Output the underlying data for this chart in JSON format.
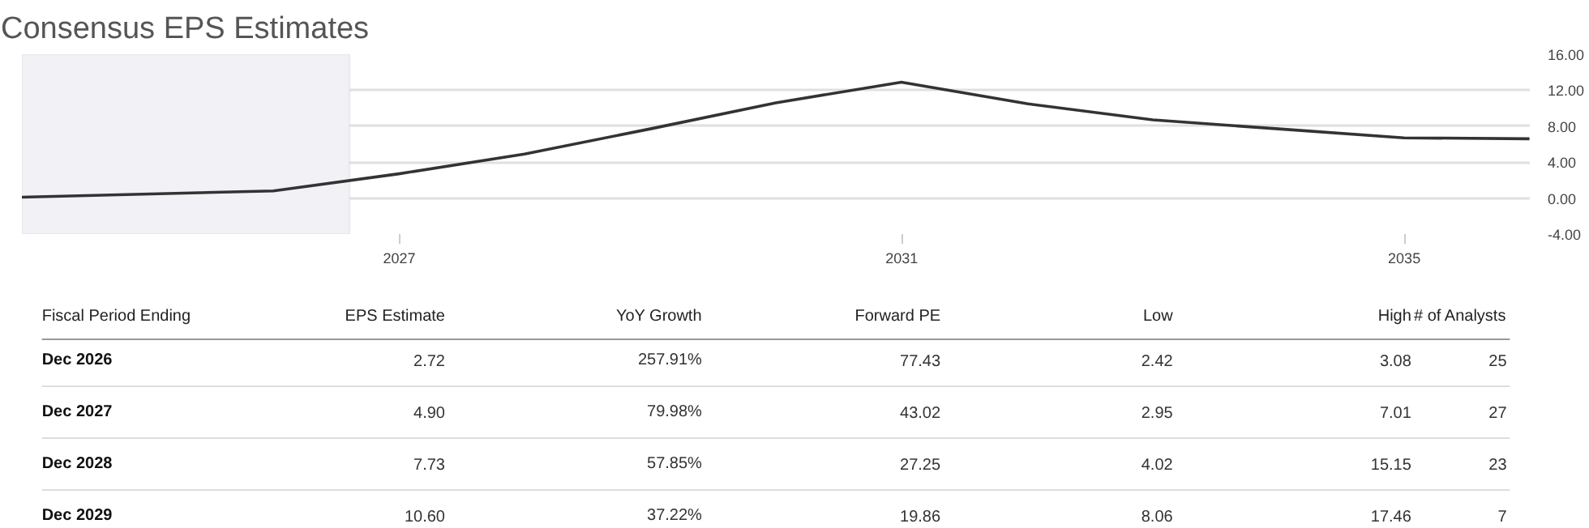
{
  "chart_data": [
    {
      "type": "line",
      "title": "Consensus EPS Estimates",
      "x": [
        "2023-12-31",
        "2025-12-31",
        "2026-12-31",
        "2027-12-31",
        "2028-12-31",
        "2029-12-31",
        "2030-12-31",
        "2031-12-31",
        "2032-12-31",
        "2033-12-31",
        "2034-12-31",
        "2035-12-31"
      ],
      "series": [
        {
          "color": "#333333",
          "values": [
            0.1,
            0.8,
            2.7,
            4.9,
            7.7,
            10.6,
            12.9,
            10.5,
            8.7,
            7.7,
            6.7,
            6.6
          ]
        }
      ],
      "xlim": [
        "2023-12-31",
        "2036-01-01"
      ],
      "xticks": [
        {
          "value": "2027-01-01",
          "label": "2027"
        },
        {
          "value": "2031-01-01",
          "label": "2031"
        },
        {
          "value": "2035-01-01",
          "label": "2035"
        }
      ],
      "ylim": [
        -4,
        16
      ],
      "yticks": [
        {
          "value": -4,
          "label": "-4.00"
        },
        {
          "value": 0,
          "label": "0.00"
        },
        {
          "value": 4,
          "label": "4.00"
        },
        {
          "value": 8,
          "label": "8.00"
        },
        {
          "value": 12,
          "label": "12.00"
        },
        {
          "value": 16,
          "label": "16.00"
        }
      ],
      "bands": [
        {
          "axis": "x",
          "from": "2023-12-31",
          "to": "2026-08-10",
          "color": "#f2f2f6"
        }
      ],
      "grid": "y",
      "marker": "none",
      "line_style": "solid"
    },
    {
      "type": "other",
      "ylabel": "Fiscal Period Ending",
      "categories": [
        "EPS Estimate",
        "YoY Growth",
        "Forward PE",
        "Low",
        "High",
        "# of Analysts"
      ],
      "y_categories": [
        "Dec 2026",
        "Dec 2027",
        "Dec 2028",
        "Dec 2029"
      ],
      "cell_labels": [
        [
          "2.72",
          "257.91%",
          "77.43",
          "2.42",
          "3.08",
          "25"
        ],
        [
          "4.90",
          "79.98%",
          "43.02",
          "2.95",
          "7.01",
          "27"
        ],
        [
          "7.73",
          "57.85%",
          "27.25",
          "4.02",
          "15.15",
          "23"
        ],
        [
          "10.60",
          "37.22%",
          "19.86",
          "8.06",
          "17.46",
          "7"
        ]
      ]
    }
  ]
}
